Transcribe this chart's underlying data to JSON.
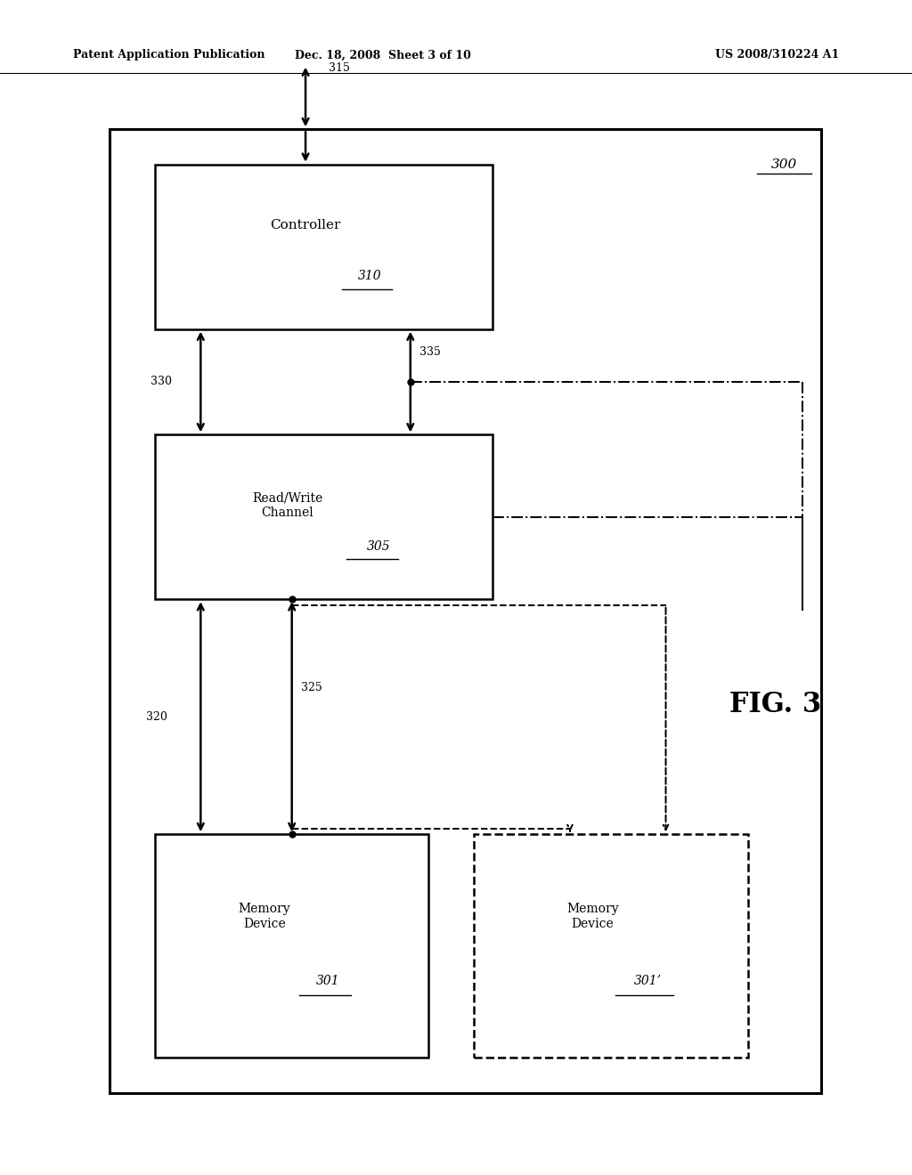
{
  "title_left": "Patent Application Publication",
  "title_mid": "Dec. 18, 2008  Sheet 3 of 10",
  "title_right": "US 2008/310224 A1",
  "fig_label": "FIG. 3",
  "fig_number": "300",
  "background": "#ffffff",
  "line_color": "#000000"
}
